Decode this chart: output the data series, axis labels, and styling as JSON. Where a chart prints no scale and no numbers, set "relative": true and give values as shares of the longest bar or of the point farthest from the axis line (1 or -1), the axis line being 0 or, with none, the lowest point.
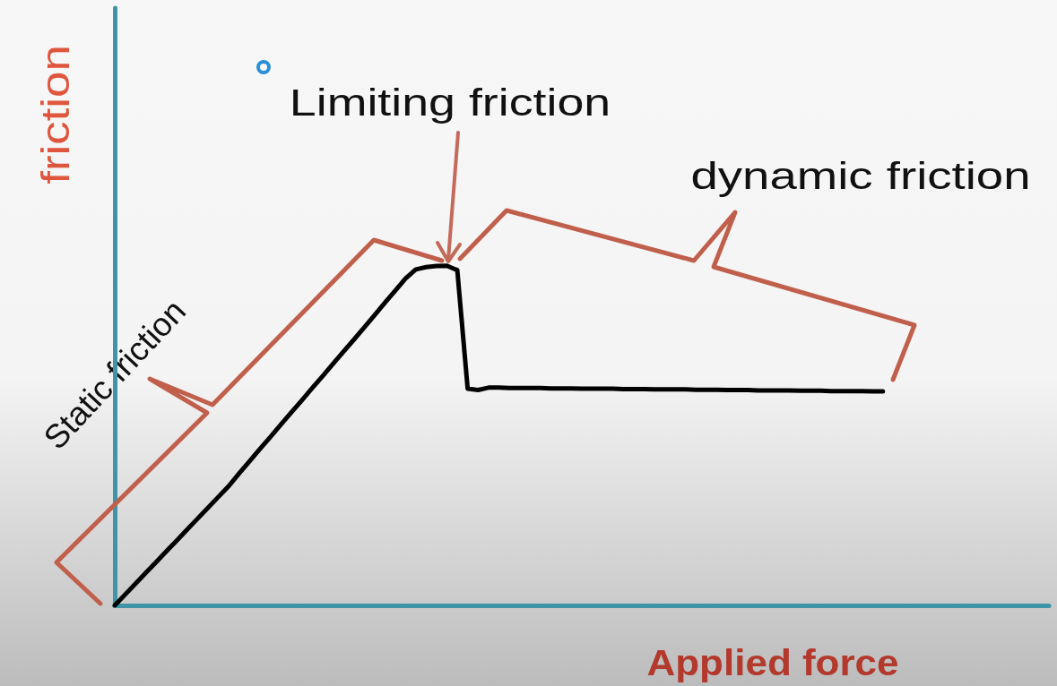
{
  "chart_data": {
    "type": "line",
    "xlabel": "Applied force",
    "ylabel": "friction",
    "annotations": [
      "Limiting friction",
      "dynamic friction",
      "Static friction"
    ],
    "relative": true,
    "categories": [
      null,
      null,
      null,
      null,
      null,
      null,
      null,
      null,
      null,
      null,
      null,
      null,
      null,
      null,
      null,
      null,
      null,
      null,
      null,
      null,
      null,
      null,
      null,
      null,
      null,
      null,
      null,
      null,
      null,
      null,
      null,
      null,
      null,
      null,
      null,
      null,
      null,
      null,
      null,
      null,
      null,
      null,
      null,
      null,
      null,
      null,
      null,
      null,
      null,
      null,
      null,
      null,
      null,
      null,
      null,
      null,
      null,
      null,
      null,
      null,
      null,
      null,
      null,
      null,
      null,
      null,
      null,
      null,
      null,
      null,
      null,
      null,
      null,
      null,
      null,
      null,
      null,
      null,
      null,
      null,
      null,
      null,
      null,
      null,
      null,
      null,
      null,
      null,
      null,
      null,
      null
    ],
    "series": [
      {
        "color": "#000000",
        "values": [
          0,
          0.032,
          0.064,
          0.096,
          0.128,
          0.16,
          0.192,
          0.224,
          0.256,
          0.288,
          0.32,
          0.352,
          0.389,
          0.425,
          0.461,
          0.496,
          0.532,
          0.568,
          0.603,
          0.639,
          0.674,
          0.71,
          0.746,
          0.781,
          0.817,
          0.853,
          0.89,
          0.926,
          0.962,
          0.989,
          0.996,
          0.999,
          1,
          0.987,
          0.638,
          0.634,
          0.641,
          0.641,
          0.64,
          0.64,
          0.64,
          0.64,
          0.639,
          0.639,
          0.639,
          0.638,
          0.638,
          0.638,
          0.638,
          0.637,
          0.637,
          0.637,
          0.636,
          0.636,
          0.636,
          0.636,
          0.635,
          0.635,
          0.635,
          0.634,
          0.634,
          0.634,
          0.633,
          0.633,
          0.633,
          0.633,
          0.632,
          0.632,
          0.632,
          0.631,
          0.631,
          0.631,
          0.631,
          0.63,
          0.63,
          null,
          null,
          null,
          null,
          null,
          null,
          null,
          null,
          null,
          null,
          null,
          null,
          null,
          null,
          null,
          null
        ]
      }
    ]
  }
}
